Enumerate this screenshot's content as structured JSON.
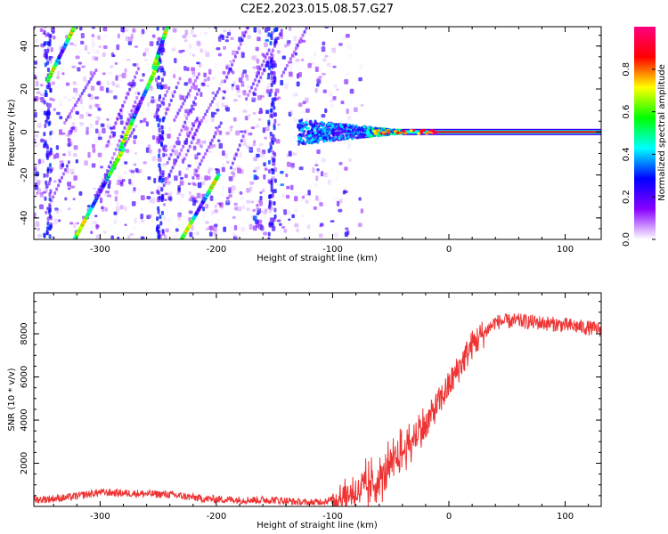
{
  "title": "C2E2.2023.015.08.57.G27",
  "chart_data": [
    {
      "type": "heatmap",
      "xlabel": "Height of straight line (km)",
      "ylabel": "Frequency (Hz)",
      "xlim": [
        -357,
        131
      ],
      "ylim": [
        -50,
        49
      ],
      "x_ticks": [
        -300,
        -200,
        -100,
        0,
        100
      ],
      "y_ticks": [
        -40,
        -20,
        0,
        20,
        40
      ],
      "colorbar": {
        "label": "Normalized spectral amplitude",
        "range": [
          0,
          1
        ],
        "ticks": [
          "0.0",
          "0.2",
          "0.4",
          "0.6",
          "0.8"
        ],
        "colors": [
          "#ffffff",
          "#8800ff",
          "#0000ff",
          "#00ffff",
          "#00ff00",
          "#ffff00",
          "#ff0000",
          "#ff0080"
        ]
      },
      "features": [
        {
          "name": "zero-frequency line",
          "x_range": [
            -130,
            131
          ],
          "frequency": 0
        },
        {
          "name": "streak-1",
          "from": [
            -322,
            -50
          ],
          "to": [
            -280,
            -8
          ]
        },
        {
          "name": "streak-2",
          "from": [
            -283,
            -8
          ],
          "to": [
            -250,
            32
          ]
        },
        {
          "name": "streak-3",
          "from": [
            -230,
            -50
          ],
          "to": [
            -198,
            -20
          ]
        },
        {
          "name": "streak-4",
          "from": [
            -345,
            24
          ],
          "to": [
            -322,
            49
          ]
        },
        {
          "name": "streak-5",
          "from": [
            -254,
            30
          ],
          "to": [
            -242,
            49
          ]
        }
      ]
    },
    {
      "type": "line",
      "xlabel": "Height of straight line (km)",
      "ylabel": "SNR (10 * v/v)",
      "xlim": [
        -357,
        131
      ],
      "ylim": [
        0,
        9900
      ],
      "x_ticks": [
        -300,
        -200,
        -100,
        0,
        100
      ],
      "y_ticks": [
        2000,
        4000,
        6000,
        8000
      ],
      "color": "#ee3333",
      "x": [
        -357,
        -330,
        -300,
        -270,
        -240,
        -210,
        -180,
        -150,
        -120,
        -100,
        -80,
        -60,
        -40,
        -20,
        0,
        20,
        40,
        60,
        80,
        100,
        131
      ],
      "y": [
        300,
        400,
        650,
        600,
        550,
        350,
        300,
        300,
        150,
        300,
        600,
        1200,
        2500,
        3800,
        5600,
        7500,
        8550,
        8600,
        8500,
        8400,
        8200
      ]
    }
  ]
}
